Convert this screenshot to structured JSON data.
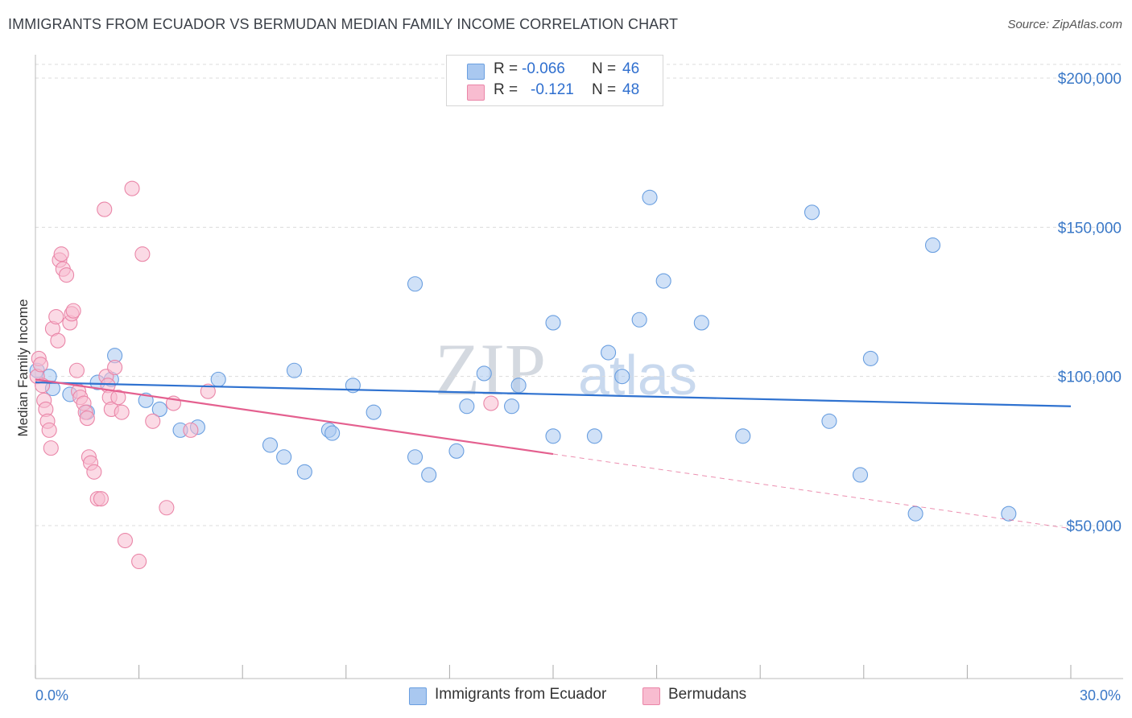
{
  "title": "IMMIGRANTS FROM ECUADOR VS BERMUDAN MEDIAN FAMILY INCOME CORRELATION CHART",
  "source": "Source: ZipAtlas.com",
  "watermark": {
    "zip": "ZIP",
    "atlas": "atlas"
  },
  "legend": {
    "rows": [
      {
        "r_label": "R =",
        "r_value": "-0.066",
        "n_label": "N =",
        "n_value": "46",
        "color": "#a9c8f0",
        "border": "#6a9fe0"
      },
      {
        "r_label": "R =",
        "r_value": "-0.121",
        "n_label": "N =",
        "n_value": "48",
        "color": "#f8bcd0",
        "border": "#ea86a8"
      }
    ]
  },
  "bottom_legend": [
    {
      "label": "Immigrants from Ecuador",
      "color": "#a9c8f0",
      "border": "#6a9fe0"
    },
    {
      "label": "Bermudans",
      "color": "#f8bcd0",
      "border": "#ea86a8"
    }
  ],
  "axes": {
    "ylabel": "Median Family Income",
    "y_ticks": [
      "$200,000",
      "$150,000",
      "$100,000",
      "$50,000"
    ],
    "x_left": "0.0%",
    "x_right": "30.0%"
  },
  "chart_data": {
    "type": "scatter",
    "title": "IMMIGRANTS FROM ECUADOR VS BERMUDAN MEDIAN FAMILY INCOME CORRELATION CHART",
    "xlabel": "",
    "ylabel": "Median Family Income",
    "xlim": [
      0,
      30
    ],
    "ylim": [
      0,
      200000
    ],
    "grid": true,
    "legend_position": "top-center",
    "series": [
      {
        "name": "Immigrants from Ecuador",
        "color": "#6a9fe0",
        "fill": "#a9c8f0",
        "trend": {
          "x": [
            0,
            30
          ],
          "y": [
            98000,
            90000
          ]
        },
        "points": [
          [
            0.05,
            102000
          ],
          [
            0.4,
            100000
          ],
          [
            0.5,
            96000
          ],
          [
            1.0,
            94000
          ],
          [
            1.5,
            88000
          ],
          [
            1.8,
            98000
          ],
          [
            2.2,
            99000
          ],
          [
            2.3,
            107000
          ],
          [
            3.2,
            92000
          ],
          [
            3.6,
            89000
          ],
          [
            4.2,
            82000
          ],
          [
            4.7,
            83000
          ],
          [
            5.3,
            99000
          ],
          [
            6.8,
            77000
          ],
          [
            7.2,
            73000
          ],
          [
            7.5,
            102000
          ],
          [
            7.8,
            68000
          ],
          [
            8.5,
            82000
          ],
          [
            8.6,
            81000
          ],
          [
            9.2,
            97000
          ],
          [
            9.8,
            88000
          ],
          [
            11.0,
            131000
          ],
          [
            11.0,
            73000
          ],
          [
            11.4,
            67000
          ],
          [
            12.2,
            75000
          ],
          [
            12.5,
            90000
          ],
          [
            13.0,
            101000
          ],
          [
            13.8,
            90000
          ],
          [
            14.0,
            97000
          ],
          [
            15.0,
            80000
          ],
          [
            15.0,
            118000
          ],
          [
            16.2,
            80000
          ],
          [
            16.6,
            108000
          ],
          [
            17.0,
            100000
          ],
          [
            17.5,
            119000
          ],
          [
            17.8,
            160000
          ],
          [
            18.2,
            132000
          ],
          [
            19.3,
            118000
          ],
          [
            20.5,
            80000
          ],
          [
            22.5,
            155000
          ],
          [
            23.0,
            85000
          ],
          [
            23.9,
            67000
          ],
          [
            24.2,
            106000
          ],
          [
            25.5,
            54000
          ],
          [
            26.0,
            144000
          ],
          [
            28.2,
            54000
          ]
        ]
      },
      {
        "name": "Bermudans",
        "color": "#ea86a8",
        "fill": "#f8bcd0",
        "trend": {
          "x": [
            0,
            30
          ],
          "y": [
            99000,
            49000
          ]
        },
        "trend_solid_until_x": 15,
        "points": [
          [
            0.05,
            100000
          ],
          [
            0.1,
            106000
          ],
          [
            0.15,
            104000
          ],
          [
            0.2,
            97000
          ],
          [
            0.25,
            92000
          ],
          [
            0.3,
            89000
          ],
          [
            0.35,
            85000
          ],
          [
            0.4,
            82000
          ],
          [
            0.45,
            76000
          ],
          [
            0.5,
            116000
          ],
          [
            0.6,
            120000
          ],
          [
            0.65,
            112000
          ],
          [
            0.7,
            139000
          ],
          [
            0.75,
            141000
          ],
          [
            0.8,
            136000
          ],
          [
            0.9,
            134000
          ],
          [
            1.0,
            118000
          ],
          [
            1.05,
            121000
          ],
          [
            1.1,
            122000
          ],
          [
            1.2,
            102000
          ],
          [
            1.25,
            95000
          ],
          [
            1.3,
            93000
          ],
          [
            1.4,
            91000
          ],
          [
            1.45,
            88000
          ],
          [
            1.5,
            86000
          ],
          [
            1.55,
            73000
          ],
          [
            1.6,
            71000
          ],
          [
            1.7,
            68000
          ],
          [
            1.8,
            59000
          ],
          [
            1.9,
            59000
          ],
          [
            2.0,
            156000
          ],
          [
            2.05,
            100000
          ],
          [
            2.1,
            97000
          ],
          [
            2.15,
            93000
          ],
          [
            2.2,
            89000
          ],
          [
            2.3,
            103000
          ],
          [
            2.4,
            93000
          ],
          [
            2.5,
            88000
          ],
          [
            2.6,
            45000
          ],
          [
            2.8,
            163000
          ],
          [
            3.0,
            38000
          ],
          [
            3.1,
            141000
          ],
          [
            3.4,
            85000
          ],
          [
            3.8,
            56000
          ],
          [
            4.0,
            91000
          ],
          [
            4.5,
            82000
          ],
          [
            5.0,
            95000
          ],
          [
            13.2,
            91000
          ]
        ]
      }
    ]
  }
}
